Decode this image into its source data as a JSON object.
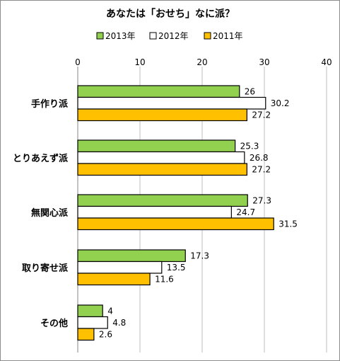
{
  "chart_data": {
    "type": "bar",
    "orientation": "horizontal",
    "title": "あなたは「おせち」なに派？",
    "categories": [
      "手作り派",
      "とりあえず派",
      "無関心派",
      "取り寄せ派",
      "その他"
    ],
    "series": [
      {
        "name": "2013年",
        "color": "#92d050",
        "values": [
          26,
          25.3,
          27.3,
          17.3,
          4
        ]
      },
      {
        "name": "2012年",
        "color": "#ffffff",
        "values": [
          30.2,
          26.8,
          24.7,
          13.5,
          4.8
        ]
      },
      {
        "name": "2011年",
        "color": "#ffc000",
        "values": [
          27.2,
          27.2,
          31.5,
          11.6,
          2.6
        ]
      }
    ],
    "value_labels": [
      [
        "26",
        "25.3",
        "27.3",
        "17.3",
        "4"
      ],
      [
        "30.2",
        "26.8",
        "24.7",
        "13.5",
        "4.8"
      ],
      [
        "27.2",
        "27.2",
        "31.5",
        "11.6",
        "2.6"
      ]
    ],
    "xlim": [
      0,
      40
    ],
    "xticks": [
      0,
      10,
      20,
      30,
      40
    ],
    "xtick_labels": [
      "0",
      "10",
      "20",
      "30",
      "40"
    ],
    "grid": true,
    "legend_position": "top",
    "axis_position": "top"
  }
}
